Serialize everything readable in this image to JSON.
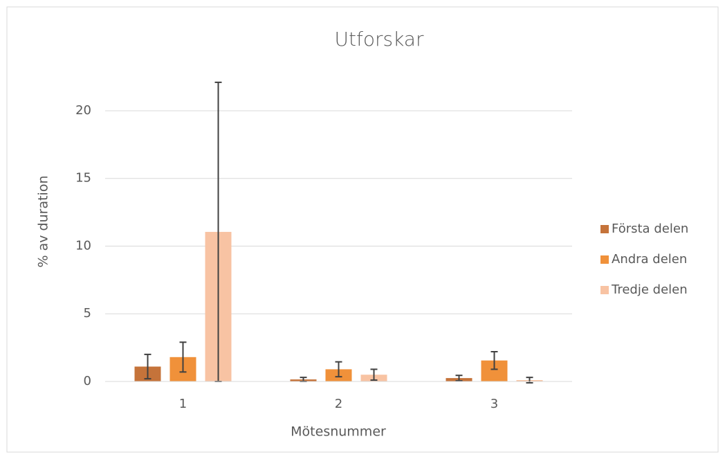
{
  "chart_data": {
    "type": "bar",
    "title": "Utforskar",
    "x_label": "Mötesnummer",
    "y_label": "% av duration",
    "categories": [
      "1",
      "2",
      "3"
    ],
    "series": [
      {
        "name": "Första delen",
        "color": "#c5733a",
        "values": [
          1.1,
          0.15,
          0.25
        ],
        "errors": [
          0.9,
          0.15,
          0.2
        ]
      },
      {
        "name": "Andra delen",
        "color": "#f0913a",
        "values": [
          1.8,
          0.9,
          1.55
        ],
        "errors": [
          1.1,
          0.55,
          0.65
        ]
      },
      {
        "name": "Tredje delen",
        "color": "#f8c3a3",
        "values": [
          11.05,
          0.5,
          0.1
        ],
        "errors": [
          11.05,
          0.4,
          0.2
        ]
      }
    ],
    "ylim": [
      0,
      22.1
    ],
    "yticks": [
      0,
      5,
      10,
      15,
      20
    ],
    "grid": true,
    "legend": "right"
  }
}
